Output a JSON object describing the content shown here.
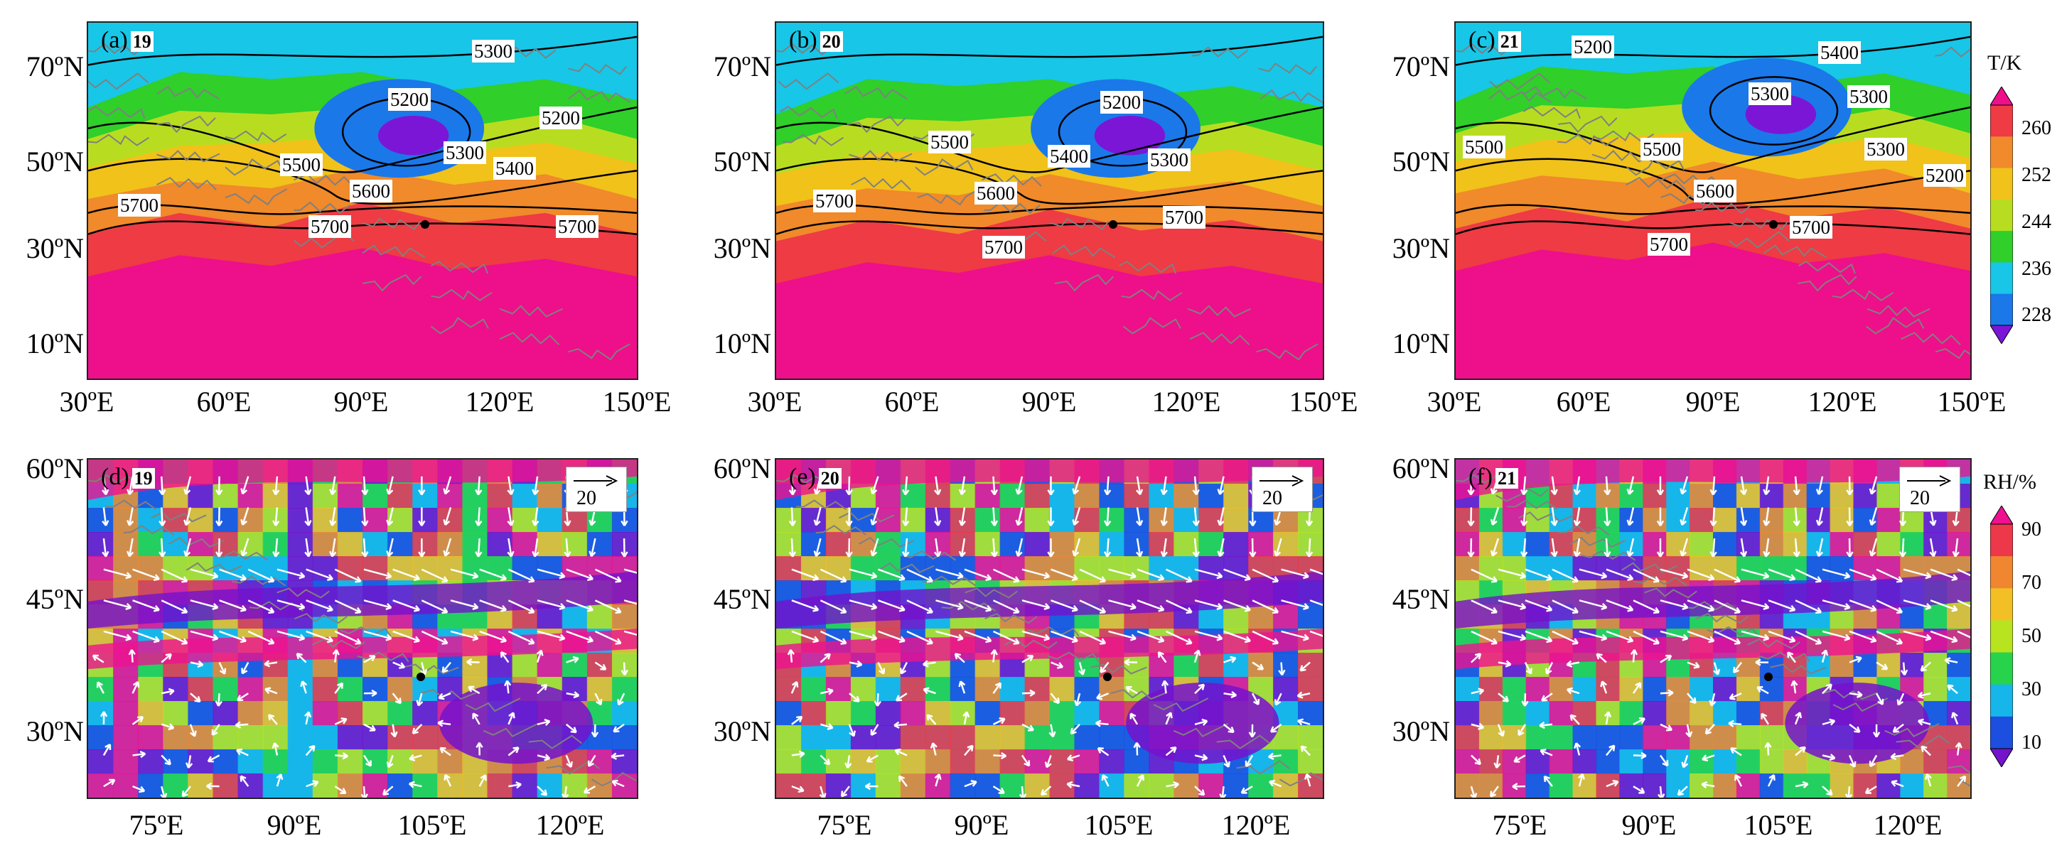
{
  "top_row": {
    "lat_ticks": [
      "70ºN",
      "50ºN",
      "30ºN",
      "10ºN"
    ],
    "lon_ticks": [
      "30ºE",
      "60ºE",
      "90ºE",
      "120ºE",
      "150ºE"
    ],
    "panels": [
      {
        "letter": "(a)",
        "day": "19",
        "contours": [
          "5300",
          "5200",
          "5200",
          "5300",
          "5500",
          "5400",
          "5600",
          "5700",
          "5700",
          "5700"
        ]
      },
      {
        "letter": "(b)",
        "day": "20",
        "contours": [
          "5200",
          "5500",
          "5400",
          "5300",
          "5700",
          "5600",
          "5700",
          "5700"
        ]
      },
      {
        "letter": "(c)",
        "day": "21",
        "contours": [
          "5200",
          "5400",
          "5300",
          "5300",
          "5500",
          "5500",
          "5300",
          "5200",
          "5600",
          "5700",
          "5700"
        ]
      }
    ],
    "colorbar": {
      "title": "T/K",
      "ticks": [
        "260",
        "252",
        "244",
        "236",
        "228"
      ]
    }
  },
  "bottom_row": {
    "lat_ticks": [
      "60ºN",
      "45ºN",
      "30ºN"
    ],
    "lon_ticks": [
      "75ºE",
      "90ºE",
      "105ºE",
      "120ºE"
    ],
    "panels": [
      {
        "letter": "(d)",
        "day": "19",
        "ref_vector": "20"
      },
      {
        "letter": "(e)",
        "day": "20",
        "ref_vector": "20"
      },
      {
        "letter": "(f)",
        "day": "21",
        "ref_vector": "20"
      }
    ],
    "colorbar": {
      "title": "RH/%",
      "ticks": [
        "90",
        "70",
        "50",
        "30",
        "10"
      ]
    }
  },
  "colors": {
    "temperature_scale": [
      "#7b16d6",
      "#1b78e8",
      "#18c6e8",
      "#30cf2a",
      "#b8dd20",
      "#f0c21a",
      "#f08a2a",
      "#ee3b44",
      "#ee0f8a"
    ],
    "rh_scale": [
      "#7412cc",
      "#1c4fe0",
      "#16b6ea",
      "#27d34a",
      "#b8e31f",
      "#f2c024",
      "#f08630",
      "#ec3848",
      "#ee1190"
    ],
    "map_border_color": "#808080",
    "contour_color": "#000000",
    "wind_vector_color": "#ffffff"
  }
}
